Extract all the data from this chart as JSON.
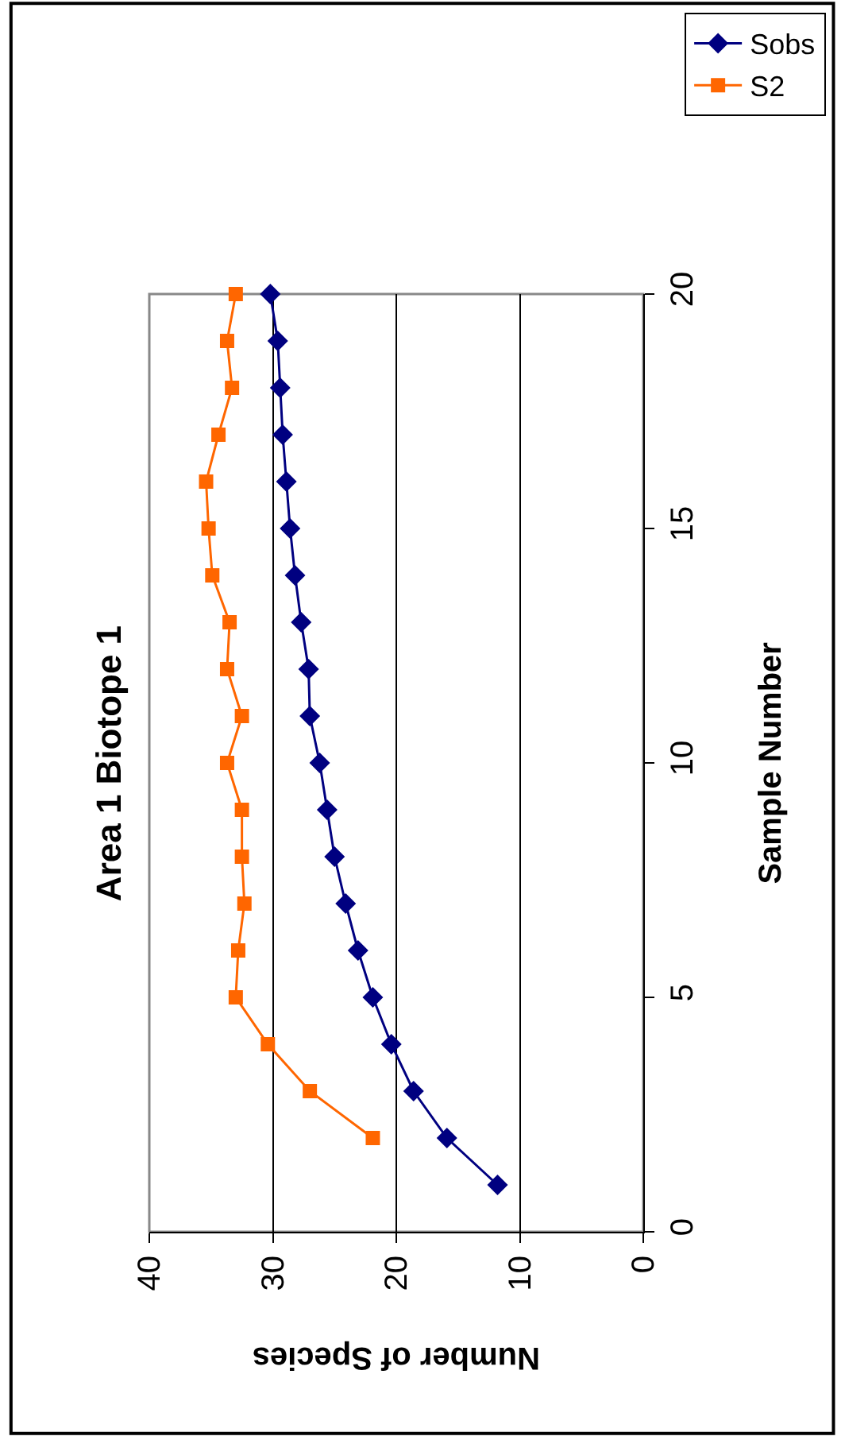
{
  "chart_data": {
    "type": "line",
    "title": "Area 1 Biotope 1",
    "xlabel": "Number of Species",
    "ylabel": "Sample Number",
    "xlim": [
      40,
      0
    ],
    "xticks": [
      0,
      10,
      20,
      30,
      40
    ],
    "ylim": [
      0,
      20
    ],
    "yticks": [
      0,
      5,
      10,
      15,
      20
    ],
    "grid": "x",
    "legend": "top right",
    "series": [
      {
        "name": "Sobs",
        "color": "#000080",
        "marker": "diamond",
        "x": [
          11.8,
          15.9,
          18.6,
          20.4,
          21.9,
          23.1,
          24.1,
          25.0,
          25.6,
          26.2,
          27.0,
          27.1,
          27.7,
          28.2,
          28.6,
          28.9,
          29.2,
          29.4,
          29.6,
          30.2
        ],
        "values": [
          1,
          2,
          3,
          4,
          5,
          6,
          7,
          8,
          9,
          10,
          11,
          12,
          13,
          14,
          15,
          16,
          17,
          18,
          19,
          20
        ]
      },
      {
        "name": "S2",
        "color": "#ff6600",
        "marker": "square",
        "x": [
          21.9,
          27.0,
          30.4,
          33.0,
          32.8,
          32.3,
          32.5,
          32.5,
          33.7,
          32.5,
          33.7,
          33.5,
          34.9,
          35.2,
          35.4,
          34.4,
          33.3,
          33.7,
          33.0
        ],
        "values": [
          2,
          3,
          4,
          5,
          6,
          7,
          8,
          9,
          10,
          11,
          12,
          13,
          14,
          15,
          16,
          17,
          18,
          19,
          20
        ]
      }
    ]
  }
}
